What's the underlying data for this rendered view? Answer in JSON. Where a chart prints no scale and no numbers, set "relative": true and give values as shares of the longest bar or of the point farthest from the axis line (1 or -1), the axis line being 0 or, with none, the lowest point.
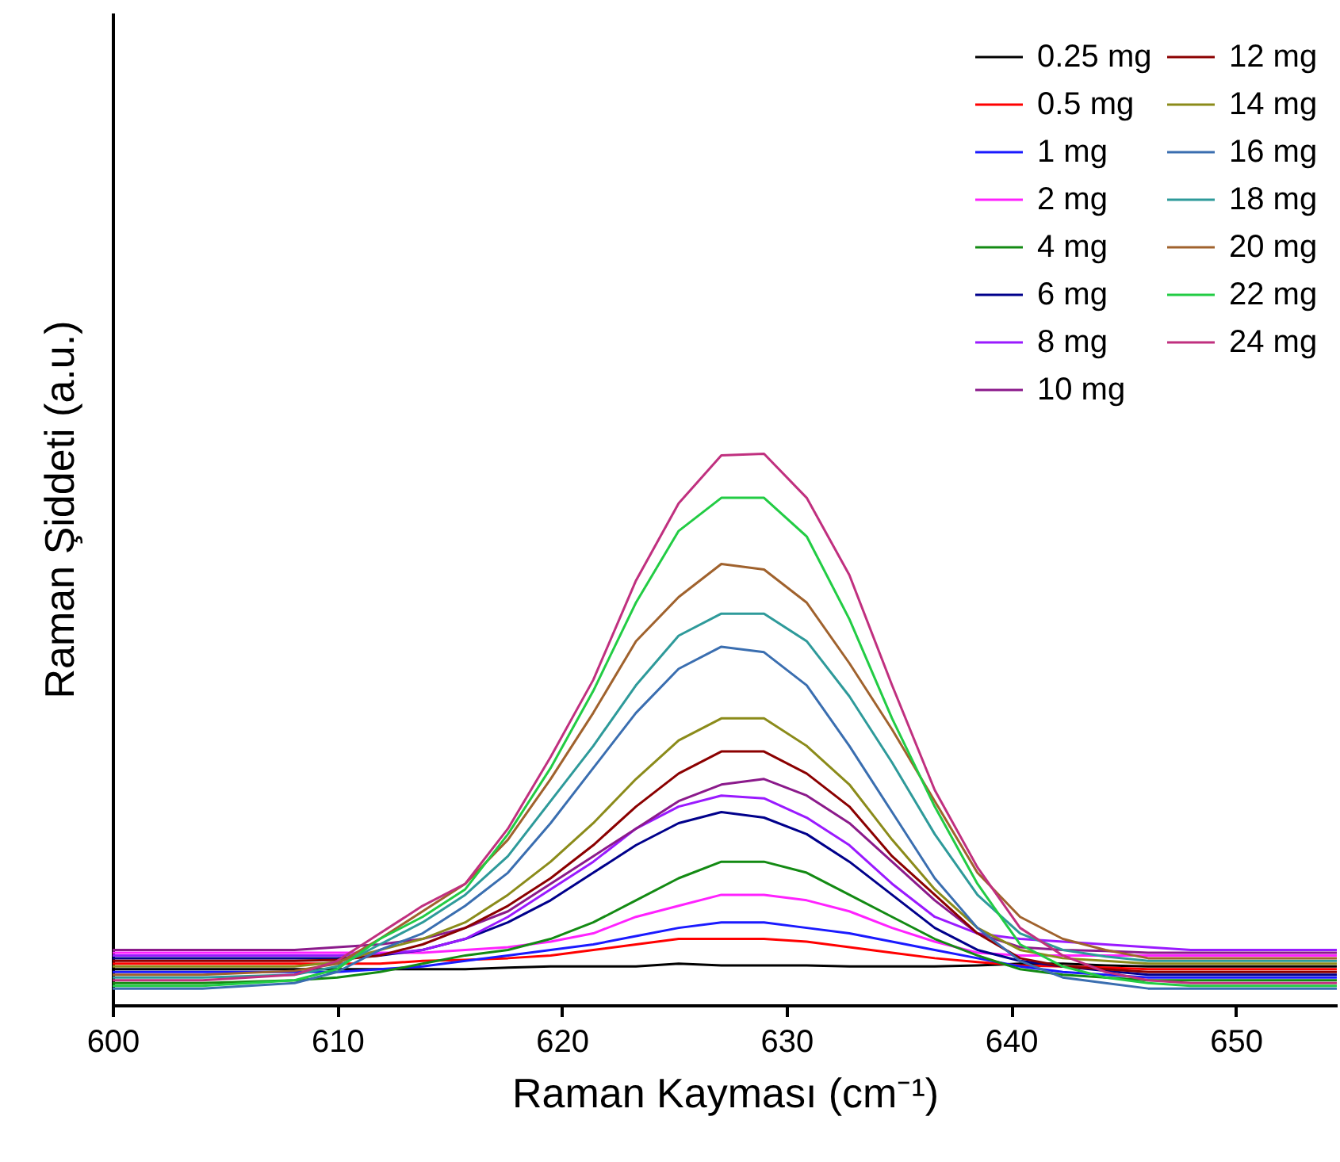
{
  "chart_data": {
    "type": "line",
    "relative": true,
    "xlabel": "Raman Kayması (cm⁻¹)",
    "ylabel": "Raman Şiddeti (a.u.)",
    "xlim": [
      600,
      654.5
    ],
    "xticks": [
      600,
      610,
      620,
      630,
      640,
      650
    ],
    "grid": false,
    "legend": "top right",
    "marker": "none",
    "line_style": "solid",
    "x": [
      600,
      604,
      608.1,
      610,
      611.9,
      613.8,
      615.7,
      617.6,
      619.5,
      621.4,
      623.3,
      625.2,
      627.1,
      629,
      630.9,
      632.8,
      634.7,
      636.6,
      638.5,
      640.4,
      642.3,
      644.2,
      646.1,
      648,
      649.9,
      651.8,
      654.5
    ],
    "series": [
      {
        "name": "0.25 mg",
        "color": "#000000",
        "values": [
          0.065,
          0.065,
          0.065,
          0.065,
          0.065,
          0.065,
          0.065,
          0.068,
          0.07,
          0.07,
          0.07,
          0.075,
          0.072,
          0.072,
          0.072,
          0.07,
          0.07,
          0.07,
          0.072,
          0.075,
          0.075,
          0.072,
          0.07,
          0.07,
          0.07,
          0.07,
          0.07
        ]
      },
      {
        "name": "0.5 mg",
        "color": "#ff0000",
        "values": [
          0.075,
          0.075,
          0.075,
          0.075,
          0.075,
          0.08,
          0.082,
          0.085,
          0.09,
          0.1,
          0.11,
          0.12,
          0.12,
          0.12,
          0.115,
          0.105,
          0.095,
          0.085,
          0.078,
          0.072,
          0.07,
          0.068,
          0.065,
          0.065,
          0.065,
          0.065,
          0.065
        ]
      },
      {
        "name": "1 mg",
        "color": "#1a1aff",
        "values": [
          0.06,
          0.06,
          0.06,
          0.06,
          0.065,
          0.07,
          0.08,
          0.09,
          0.1,
          0.11,
          0.125,
          0.14,
          0.15,
          0.15,
          0.14,
          0.13,
          0.115,
          0.1,
          0.085,
          0.07,
          0.06,
          0.055,
          0.05,
          0.05,
          0.05,
          0.05,
          0.05
        ]
      },
      {
        "name": "2 mg",
        "color": "#ff22ff",
        "values": [
          0.095,
          0.095,
          0.095,
          0.095,
          0.095,
          0.095,
          0.1,
          0.105,
          0.115,
          0.13,
          0.16,
          0.18,
          0.2,
          0.2,
          0.19,
          0.17,
          0.14,
          0.115,
          0.095,
          0.09,
          0.09,
          0.09,
          0.09,
          0.09,
          0.09,
          0.09,
          0.09
        ]
      },
      {
        "name": "4 mg",
        "color": "#138a13",
        "values": [
          0.04,
          0.04,
          0.045,
          0.05,
          0.06,
          0.075,
          0.09,
          0.1,
          0.12,
          0.15,
          0.19,
          0.23,
          0.26,
          0.26,
          0.24,
          0.2,
          0.16,
          0.12,
          0.09,
          0.065,
          0.055,
          0.05,
          0.045,
          0.045,
          0.045,
          0.045,
          0.045
        ]
      },
      {
        "name": "6 mg",
        "color": "#00008b",
        "values": [
          0.085,
          0.085,
          0.085,
          0.085,
          0.09,
          0.1,
          0.12,
          0.15,
          0.19,
          0.24,
          0.29,
          0.33,
          0.35,
          0.34,
          0.31,
          0.26,
          0.2,
          0.14,
          0.1,
          0.08,
          0.07,
          0.062,
          0.055,
          0.055,
          0.055,
          0.055,
          0.055
        ]
      },
      {
        "name": "8 mg",
        "color": "#9a1aff",
        "values": [
          0.09,
          0.09,
          0.09,
          0.09,
          0.092,
          0.1,
          0.12,
          0.16,
          0.21,
          0.26,
          0.32,
          0.36,
          0.38,
          0.375,
          0.34,
          0.29,
          0.22,
          0.16,
          0.13,
          0.12,
          0.115,
          0.11,
          0.105,
          0.1,
          0.1,
          0.1,
          0.1
        ]
      },
      {
        "name": "10 mg",
        "color": "#8b1a8b",
        "values": [
          0.1,
          0.1,
          0.1,
          0.105,
          0.11,
          0.12,
          0.14,
          0.17,
          0.22,
          0.27,
          0.32,
          0.37,
          0.4,
          0.41,
          0.38,
          0.33,
          0.26,
          0.19,
          0.13,
          0.105,
          0.1,
          0.098,
          0.095,
          0.095,
          0.095,
          0.095,
          0.095
        ]
      },
      {
        "name": "12 mg",
        "color": "#8b0000",
        "values": [
          0.08,
          0.08,
          0.08,
          0.082,
          0.09,
          0.11,
          0.14,
          0.18,
          0.23,
          0.29,
          0.36,
          0.42,
          0.46,
          0.46,
          0.42,
          0.36,
          0.27,
          0.2,
          0.13,
          0.085,
          0.07,
          0.065,
          0.06,
          0.06,
          0.06,
          0.06,
          0.06
        ]
      },
      {
        "name": "14 mg",
        "color": "#8b8b1a",
        "values": [
          0.07,
          0.07,
          0.07,
          0.078,
          0.1,
          0.12,
          0.15,
          0.2,
          0.26,
          0.33,
          0.41,
          0.48,
          0.52,
          0.52,
          0.47,
          0.4,
          0.3,
          0.21,
          0.14,
          0.1,
          0.085,
          0.08,
          0.075,
          0.075,
          0.075,
          0.075,
          0.075
        ]
      },
      {
        "name": "16 mg",
        "color": "#3a6eb0",
        "values": [
          0.03,
          0.03,
          0.04,
          0.06,
          0.1,
          0.13,
          0.18,
          0.24,
          0.33,
          0.43,
          0.53,
          0.61,
          0.65,
          0.64,
          0.58,
          0.47,
          0.35,
          0.23,
          0.14,
          0.08,
          0.05,
          0.04,
          0.03,
          0.03,
          0.03,
          0.03,
          0.03
        ]
      },
      {
        "name": "18 mg",
        "color": "#2e9a9a",
        "values": [
          0.05,
          0.05,
          0.055,
          0.07,
          0.11,
          0.15,
          0.2,
          0.27,
          0.37,
          0.47,
          0.58,
          0.67,
          0.71,
          0.71,
          0.66,
          0.56,
          0.44,
          0.31,
          0.2,
          0.13,
          0.1,
          0.088,
          0.08,
          0.08,
          0.08,
          0.08,
          0.08
        ]
      },
      {
        "name": "20 mg",
        "color": "#a0622d",
        "values": [
          0.055,
          0.055,
          0.062,
          0.075,
          0.12,
          0.17,
          0.22,
          0.3,
          0.41,
          0.53,
          0.66,
          0.74,
          0.8,
          0.79,
          0.73,
          0.62,
          0.5,
          0.37,
          0.24,
          0.16,
          0.12,
          0.1,
          0.085,
          0.085,
          0.085,
          0.085,
          0.085
        ]
      },
      {
        "name": "22 mg",
        "color": "#22cc44",
        "values": [
          0.035,
          0.035,
          0.045,
          0.065,
          0.12,
          0.16,
          0.21,
          0.31,
          0.43,
          0.57,
          0.73,
          0.86,
          0.92,
          0.92,
          0.85,
          0.7,
          0.52,
          0.36,
          0.22,
          0.11,
          0.07,
          0.05,
          0.04,
          0.035,
          0.035,
          0.035,
          0.035
        ]
      },
      {
        "name": "24 mg",
        "color": "#c0307f",
        "values": [
          0.045,
          0.045,
          0.055,
          0.08,
          0.13,
          0.18,
          0.22,
          0.32,
          0.45,
          0.59,
          0.77,
          0.91,
          0.997,
          1.0,
          0.92,
          0.78,
          0.58,
          0.39,
          0.25,
          0.14,
          0.09,
          0.06,
          0.045,
          0.04,
          0.04,
          0.04,
          0.04
        ]
      }
    ]
  }
}
